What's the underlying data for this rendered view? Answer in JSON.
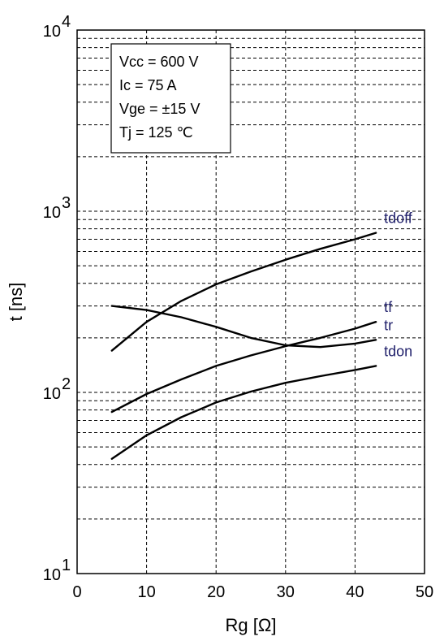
{
  "chart_data": {
    "type": "line",
    "xlabel": "Rg [Ω]",
    "ylabel": "t [ns]",
    "xlim": [
      0,
      50
    ],
    "ylim": [
      10,
      10000
    ],
    "yscale": "log",
    "grid": true,
    "x_ticks": [
      "0",
      "10",
      "20",
      "30",
      "40",
      "50"
    ],
    "y_ticks": [
      {
        "base": "10",
        "exp": "1"
      },
      {
        "base": "10",
        "exp": "2"
      },
      {
        "base": "10",
        "exp": "3"
      },
      {
        "base": "10",
        "exp": "4"
      }
    ],
    "conditions": [
      "Vcc = 600 V",
      "Ic = 75 A",
      "Vge = ±15 V",
      "Tj = 125 ℃"
    ],
    "series": [
      {
        "name": "tdoff",
        "x": [
          5,
          10,
          15,
          20,
          25,
          30,
          35,
          40,
          43
        ],
        "y": [
          170,
          245,
          320,
          395,
          465,
          540,
          620,
          700,
          760
        ]
      },
      {
        "name": "tr",
        "x": [
          5,
          10,
          15,
          20,
          25,
          30,
          35,
          40,
          43
        ],
        "y": [
          300,
          285,
          260,
          230,
          200,
          182,
          178,
          186,
          195
        ]
      },
      {
        "name": "tf",
        "x": [
          5,
          10,
          15,
          20,
          25,
          30,
          35,
          40,
          43
        ],
        "y": [
          78,
          98,
          118,
          140,
          160,
          180,
          200,
          225,
          245
        ]
      },
      {
        "name": "tdon",
        "x": [
          5,
          10,
          15,
          20,
          25,
          30,
          35,
          40,
          43
        ],
        "y": [
          43,
          58,
          73,
          88,
          101,
          113,
          123,
          133,
          140
        ]
      }
    ]
  }
}
